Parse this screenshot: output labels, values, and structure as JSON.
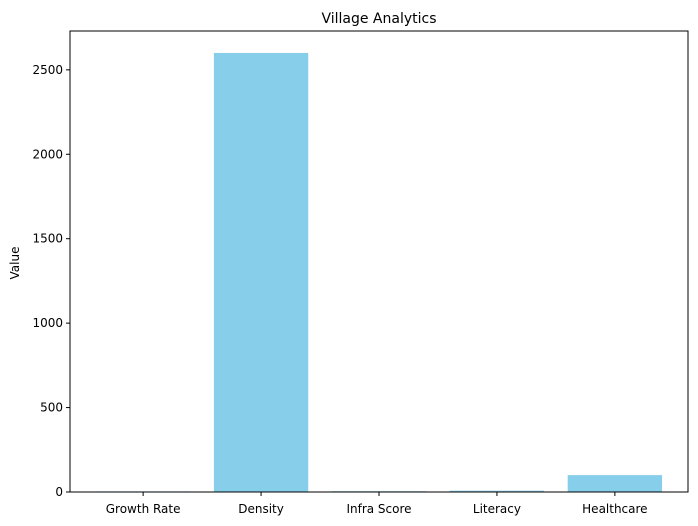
{
  "chart_data": {
    "type": "bar",
    "title": "Village Analytics",
    "xlabel": "",
    "ylabel": "Value",
    "categories": [
      "Growth Rate",
      "Density",
      "Infra Score",
      "Literacy",
      "Healthcare"
    ],
    "values": [
      2.1,
      2600,
      4.5,
      7.8,
      100
    ],
    "ylim": [
      0,
      2730
    ],
    "yticks": [
      0,
      500,
      1000,
      1500,
      2000,
      2500
    ],
    "ytick_labels": [
      "0",
      "500",
      "1000",
      "1500",
      "2000",
      "2500"
    ],
    "bar_color": "#87ceeb",
    "grid": false,
    "legend": "none"
  }
}
